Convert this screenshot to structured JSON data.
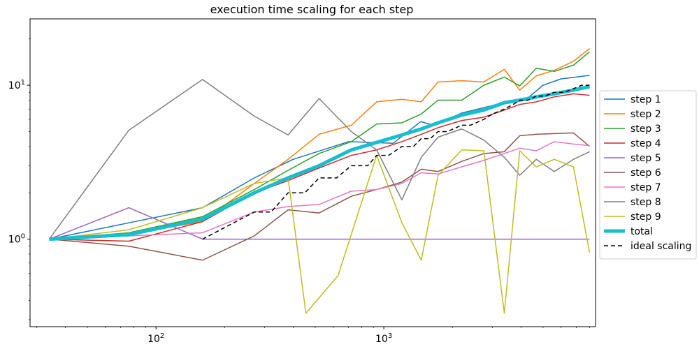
{
  "chart_data": {
    "type": "line",
    "title": "execution time scaling for each step",
    "xlabel": "",
    "ylabel": "",
    "xscale": "log",
    "yscale": "log",
    "xlim": [
      28,
      8500
    ],
    "ylim": [
      0.27,
      27
    ],
    "grid": false,
    "legend_position": "outside-right",
    "x_ticks": [
      {
        "value": 100,
        "label": "10^2"
      },
      {
        "value": 1000,
        "label": "10^3"
      }
    ],
    "y_ticks": [
      {
        "value": 1,
        "label": "10^0"
      },
      {
        "value": 10,
        "label": "10^1"
      }
    ],
    "series": [
      {
        "name": "step 1",
        "color": "#1f77b4",
        "lineWidth": 1.5,
        "dash": "",
        "x": [
          34,
          160,
          270,
          400,
          700,
          1100,
          1450,
          1650,
          2200,
          2800,
          3500,
          4300,
          5000,
          6000,
          7000,
          8000
        ],
        "y": [
          1.0,
          1.6,
          2.5,
          3.3,
          4.3,
          4.2,
          5.8,
          5.5,
          6.6,
          7.2,
          7.8,
          8.3,
          10.0,
          11.0,
          11.3,
          11.6
        ]
      },
      {
        "name": "step 2",
        "color": "#ff7f0e",
        "lineWidth": 1.5,
        "dash": "",
        "x": [
          34,
          76,
          160,
          270,
          380,
          520,
          720,
          930,
          1200,
          1460,
          1730,
          2200,
          2750,
          3380,
          3950,
          4670,
          5600,
          6800,
          8000
        ],
        "y": [
          1.0,
          1.08,
          1.3,
          2.3,
          3.3,
          4.8,
          5.5,
          7.8,
          8.1,
          7.8,
          10.5,
          10.7,
          10.5,
          12.7,
          9.3,
          11.5,
          12.5,
          14.3,
          17.3
        ]
      },
      {
        "name": "step 3",
        "color": "#2ca02c",
        "lineWidth": 1.5,
        "dash": "",
        "x": [
          34,
          76,
          160,
          270,
          380,
          520,
          720,
          930,
          1200,
          1460,
          1730,
          2200,
          2750,
          3380,
          3950,
          4670,
          5600,
          6800,
          8000
        ],
        "y": [
          1.0,
          1.1,
          1.4,
          2.1,
          2.8,
          3.6,
          4.3,
          5.6,
          5.7,
          6.5,
          8.0,
          8.0,
          10.0,
          11.3,
          9.9,
          12.9,
          12.3,
          13.5,
          16.5
        ]
      },
      {
        "name": "step 4",
        "color": "#d62728",
        "lineWidth": 1.5,
        "dash": "",
        "x": [
          34,
          76,
          160,
          270,
          380,
          520,
          720,
          930,
          1200,
          1460,
          1730,
          2200,
          2750,
          3380,
          3950,
          4670,
          5600,
          6800,
          8000
        ],
        "y": [
          1.0,
          0.97,
          1.3,
          2.0,
          2.4,
          2.9,
          3.5,
          3.8,
          4.3,
          4.8,
          5.3,
          5.9,
          6.2,
          6.9,
          7.5,
          7.8,
          8.4,
          8.8,
          8.6
        ]
      },
      {
        "name": "step 5",
        "color": "#9467bd",
        "lineWidth": 1.5,
        "dash": "",
        "x": [
          34,
          76,
          160,
          270,
          380,
          520,
          720,
          930,
          1200,
          1460,
          1730,
          2200,
          2750,
          3380,
          3950,
          4670,
          5600,
          6800,
          8000
        ],
        "y": [
          1.0,
          1.6,
          1.0,
          1.0,
          1.0,
          1.0,
          1.0,
          1.0,
          1.0,
          1.0,
          1.0,
          1.0,
          1.0,
          1.0,
          1.0,
          1.0,
          1.0,
          1.0,
          1.0
        ]
      },
      {
        "name": "step 6",
        "color": "#8c564b",
        "lineWidth": 1.5,
        "dash": "",
        "x": [
          34,
          76,
          160,
          270,
          380,
          520,
          720,
          930,
          1200,
          1460,
          1730,
          2200,
          2750,
          3380,
          3950,
          4670,
          5600,
          6800,
          8000
        ],
        "y": [
          1.0,
          0.9,
          0.73,
          1.05,
          1.55,
          1.48,
          1.9,
          2.1,
          2.35,
          2.85,
          2.75,
          3.2,
          3.6,
          3.7,
          4.7,
          4.8,
          4.85,
          4.9,
          4.0
        ]
      },
      {
        "name": "step 7",
        "color": "#e377c2",
        "lineWidth": 1.5,
        "dash": "",
        "x": [
          34,
          76,
          160,
          270,
          380,
          520,
          720,
          930,
          1200,
          1460,
          1730,
          2200,
          2750,
          3380,
          3950,
          4670,
          5600,
          6800,
          8000
        ],
        "y": [
          1.0,
          1.05,
          1.1,
          1.5,
          1.63,
          1.68,
          2.05,
          2.1,
          2.3,
          2.7,
          2.65,
          2.95,
          3.25,
          3.6,
          3.9,
          3.75,
          4.3,
          4.15,
          4.05
        ]
      },
      {
        "name": "step 8",
        "color": "#7f7f7f",
        "lineWidth": 1.5,
        "dash": "",
        "x": [
          34,
          76,
          160,
          270,
          380,
          520,
          720,
          930,
          1200,
          1460,
          1730,
          2200,
          2750,
          3380,
          3950,
          4670,
          5600,
          6800,
          8000
        ],
        "y": [
          1.0,
          5.1,
          10.9,
          6.3,
          4.75,
          8.2,
          5.0,
          3.8,
          1.8,
          3.4,
          4.6,
          5.2,
          4.4,
          3.4,
          2.6,
          3.3,
          2.75,
          3.3,
          3.7
        ]
      },
      {
        "name": "step 9",
        "color": "#bcbd22",
        "lineWidth": 1.5,
        "dash": "",
        "x": [
          34,
          76,
          160,
          270,
          380,
          455,
          630,
          930,
          1200,
          1460,
          1730,
          2200,
          2750,
          3380,
          3950,
          4670,
          5600,
          6800,
          8000
        ],
        "y": [
          1.0,
          1.15,
          1.6,
          2.3,
          2.5,
          0.33,
          0.58,
          3.5,
          1.28,
          0.73,
          2.6,
          3.8,
          3.75,
          0.33,
          3.75,
          2.95,
          3.3,
          2.95,
          0.82
        ]
      },
      {
        "name": "total",
        "color": "#17becf",
        "lineWidth": 5,
        "dash": "",
        "x": [
          34,
          76,
          160,
          270,
          380,
          520,
          720,
          930,
          1200,
          1460,
          1730,
          2200,
          2750,
          3380,
          3950,
          4670,
          5600,
          6800,
          8000
        ],
        "y": [
          1.0,
          1.07,
          1.35,
          2.0,
          2.5,
          3.0,
          3.8,
          4.25,
          4.75,
          5.2,
          5.7,
          6.4,
          6.9,
          7.7,
          8.0,
          8.4,
          8.8,
          9.3,
          9.8
        ]
      },
      {
        "name": "ideal scaling",
        "color": "#000000",
        "lineWidth": 1.5,
        "dash": "6,4",
        "x": [
          160,
          270,
          320,
          380,
          450,
          520,
          620,
          720,
          850,
          930,
          1050,
          1200,
          1350,
          1460,
          1600,
          1730,
          1900,
          2200,
          2400,
          2750,
          3000,
          3380,
          3700,
          3950,
          4300,
          4670,
          5100,
          5600,
          6200,
          6800,
          7400,
          8000
        ],
        "y": [
          1.0,
          1.5,
          1.5,
          2.0,
          2.0,
          2.5,
          2.5,
          3.0,
          3.0,
          3.5,
          3.5,
          4.0,
          4.0,
          4.5,
          4.5,
          5.0,
          5.0,
          5.5,
          5.5,
          6.0,
          6.5,
          7.0,
          7.5,
          8.0,
          8.0,
          8.5,
          8.5,
          9.0,
          9.0,
          9.5,
          10.0,
          10.0
        ]
      }
    ]
  }
}
